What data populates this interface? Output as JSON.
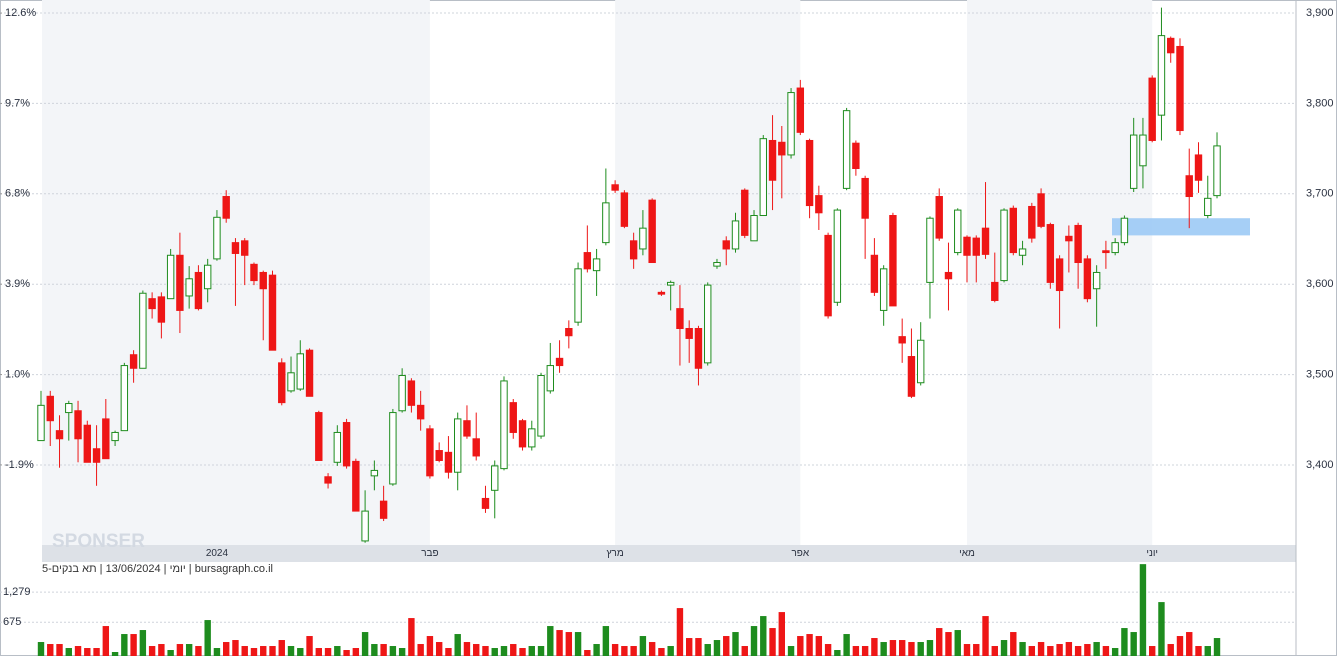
{
  "chart_data": {
    "type": "candlestick",
    "footer": "יומי | 13/06/2024 | תא בנקים-5 | bursagraph.co.il",
    "watermark": "SPONSER",
    "categories": [
      null,
      null,
      null,
      null,
      null,
      null,
      null,
      null,
      null,
      null,
      null,
      null,
      null,
      null,
      null,
      null,
      null,
      null,
      null,
      "2024",
      null,
      null,
      null,
      null,
      null,
      null,
      null,
      null,
      null,
      null,
      null,
      null,
      null,
      null,
      null,
      null,
      null,
      null,
      null,
      null,
      null,
      null,
      "פבר",
      null,
      null,
      null,
      null,
      null,
      null,
      null,
      null,
      null,
      null,
      null,
      null,
      null,
      null,
      null,
      null,
      null,
      null,
      null,
      "מרץ",
      null,
      null,
      null,
      null,
      null,
      null,
      null,
      null,
      null,
      null,
      null,
      null,
      null,
      null,
      null,
      null,
      null,
      null,
      null,
      "אפר",
      null,
      null,
      null,
      null,
      null,
      null,
      null,
      null,
      null,
      null,
      null,
      null,
      null,
      null,
      null,
      null,
      null,
      "מאי",
      null,
      null,
      null,
      null,
      null,
      null,
      null,
      null,
      null,
      null,
      null,
      null,
      null,
      null,
      null,
      null,
      null,
      null,
      null,
      "יוני",
      null,
      null,
      null,
      null,
      null,
      null,
      null
    ],
    "open": [
      3427,
      3476,
      3438,
      3458,
      3460,
      3444,
      3418,
      3451,
      3427,
      3438,
      3522,
      3507,
      3584,
      3586,
      3584,
      3632,
      3587,
      3613,
      3595,
      3628,
      3697,
      3646,
      3648,
      3622,
      3613,
      3610,
      3513,
      3482,
      3484,
      3527,
      3458,
      3387,
      3403,
      3447,
      3404,
      3316,
      3388,
      3360,
      3379,
      3460,
      3493,
      3466,
      3440,
      3416,
      3414,
      3392,
      3449,
      3429,
      3363,
      3372,
      3396,
      3469,
      3449,
      3420,
      3432,
      3482,
      3518,
      3551,
      3558,
      3635,
      3615,
      3646,
      3710,
      3701,
      3648,
      3639,
      3693,
      3591,
      3599,
      3573,
      3551,
      3551,
      3513,
      3620,
      3648,
      3639,
      3704,
      3648,
      3676,
      3759,
      3757,
      3743,
      3817,
      3759,
      3698,
      3654,
      3580,
      3706,
      3756,
      3717,
      3632,
      3571,
      3676,
      3542,
      3520,
      3491,
      3602,
      3697,
      3613,
      3635,
      3652,
      3651,
      3662,
      3602,
      3604,
      3684,
      3632,
      3686,
      3700,
      3666,
      3628,
      3653,
      3665,
      3628,
      3595,
      3637,
      3635,
      3646,
      3706,
      3731,
      3828,
      3787,
      3872,
      3863,
      3720,
      3743,
      3676,
      3698
    ],
    "high": [
      3482,
      3482,
      3455,
      3471,
      3471,
      3449,
      3444,
      3473,
      3438,
      3513,
      3527,
      3593,
      3591,
      3591,
      3639,
      3657,
      3620,
      3621,
      3628,
      3682,
      3704,
      3651,
      3651,
      3624,
      3615,
      3615,
      3518,
      3520,
      3538,
      3529,
      3460,
      3391,
      3444,
      3451,
      3407,
      3372,
      3405,
      3377,
      3462,
      3507,
      3496,
      3482,
      3444,
      3425,
      3432,
      3458,
      3466,
      3458,
      3377,
      3405,
      3498,
      3473,
      3451,
      3449,
      3502,
      3535,
      3538,
      3560,
      3624,
      3665,
      3639,
      3728,
      3715,
      3704,
      3657,
      3682,
      3695,
      3593,
      3604,
      3599,
      3560,
      3554,
      3602,
      3628,
      3653,
      3679,
      3706,
      3682,
      3765,
      3787,
      3775,
      3817,
      3826,
      3761,
      3709,
      3657,
      3684,
      3795,
      3759,
      3720,
      3651,
      3621,
      3679,
      3562,
      3551,
      3558,
      3675,
      3706,
      3646,
      3684,
      3654,
      3654,
      3713,
      3635,
      3684,
      3687,
      3648,
      3690,
      3706,
      3668,
      3632,
      3665,
      3668,
      3632,
      3621,
      3648,
      3651,
      3676,
      3784,
      3784,
      3831,
      3906,
      3874,
      3872,
      3750,
      3757,
      3720,
      3768
    ],
    "low": [
      3427,
      3421,
      3397,
      3427,
      3403,
      3403,
      3377,
      3407,
      3421,
      3438,
      3491,
      3507,
      3562,
      3540,
      3584,
      3546,
      3573,
      3571,
      3580,
      3626,
      3668,
      3576,
      3599,
      3599,
      3538,
      3527,
      3466,
      3480,
      3482,
      3476,
      3405,
      3374,
      3399,
      3396,
      3349,
      3314,
      3372,
      3338,
      3377,
      3458,
      3458,
      3438,
      3385,
      3403,
      3385,
      3372,
      3429,
      3405,
      3347,
      3341,
      3394,
      3429,
      3416,
      3416,
      3429,
      3479,
      3502,
      3529,
      3554,
      3613,
      3587,
      3643,
      3701,
      3662,
      3617,
      3632,
      3624,
      3587,
      3571,
      3510,
      3513,
      3488,
      3510,
      3617,
      3621,
      3635,
      3651,
      3648,
      3676,
      3682,
      3695,
      3739,
      3765,
      3673,
      3660,
      3562,
      3576,
      3704,
      3720,
      3628,
      3587,
      3554,
      3576,
      3513,
      3474,
      3488,
      3562,
      3648,
      3571,
      3632,
      3602,
      3602,
      3628,
      3580,
      3602,
      3632,
      3621,
      3646,
      3662,
      3595,
      3551,
      3613,
      3595,
      3580,
      3553,
      3617,
      3632,
      3643,
      3702,
      3706,
      3757,
      3759,
      3845,
      3765,
      3662,
      3701,
      3673,
      3695
    ],
    "close": [
      3466,
      3449,
      3429,
      3468,
      3429,
      3403,
      3403,
      3407,
      3436,
      3510,
      3507,
      3590,
      3573,
      3558,
      3632,
      3571,
      3606,
      3573,
      3621,
      3674,
      3673,
      3634,
      3632,
      3604,
      3595,
      3527,
      3469,
      3502,
      3523,
      3476,
      3405,
      3380,
      3436,
      3399,
      3349,
      3349,
      3394,
      3341,
      3458,
      3499,
      3466,
      3451,
      3388,
      3405,
      3392,
      3451,
      3432,
      3410,
      3352,
      3399,
      3493,
      3436,
      3420,
      3440,
      3499,
      3510,
      3510,
      3543,
      3617,
      3617,
      3628,
      3690,
      3704,
      3664,
      3628,
      3662,
      3624,
      3589,
      3602,
      3551,
      3540,
      3507,
      3599,
      3624,
      3639,
      3670,
      3654,
      3676,
      3761,
      3715,
      3743,
      3812,
      3768,
      3687,
      3679,
      3565,
      3682,
      3792,
      3728,
      3673,
      3591,
      3617,
      3576,
      3535,
      3476,
      3538,
      3673,
      3651,
      3606,
      3682,
      3632,
      3632,
      3633,
      3582,
      3682,
      3635,
      3639,
      3651,
      3664,
      3602,
      3593,
      3648,
      3624,
      3584,
      3613,
      3635,
      3646,
      3673,
      3765,
      3765,
      3759,
      3875,
      3856,
      3770,
      3697,
      3715,
      3695,
      3753
    ],
    "up_color": "#1e8c1e",
    "down_color": "#ee1616",
    "ylim": [
      3311.5,
      3914.4
    ],
    "yticks": [
      {
        "value": 3400,
        "label": "3,400"
      },
      {
        "value": 3500,
        "label": "3,500"
      },
      {
        "value": 3600,
        "label": "3,600"
      },
      {
        "value": 3700,
        "label": "3,700"
      },
      {
        "value": 3800,
        "label": "3,800"
      },
      {
        "value": 3900,
        "label": "3,900"
      }
    ],
    "y2lim": [
      -4.47,
      13.02
    ],
    "y2ticks": [
      {
        "value": -1.9,
        "label": "-1.9%"
      },
      {
        "value": 1.0,
        "label": "1.0%"
      },
      {
        "value": 3.9,
        "label": "3.9%"
      },
      {
        "value": 6.8,
        "label": "6.8%"
      },
      {
        "value": 9.7,
        "label": "9.7%"
      },
      {
        "value": 12.6,
        "label": "12.6%"
      }
    ],
    "grid": true,
    "highlight": {
      "ylim": [
        3654,
        3673
      ],
      "color": "#9ccaf5"
    },
    "volume": {
      "values": [
        280,
        240,
        240,
        160,
        200,
        160,
        160,
        600,
        80,
        440,
        440,
        520,
        200,
        240,
        120,
        240,
        240,
        200,
        720,
        160,
        280,
        320,
        200,
        160,
        200,
        200,
        320,
        200,
        160,
        400,
        160,
        160,
        200,
        120,
        160,
        480,
        240,
        240,
        200,
        160,
        760,
        240,
        400,
        280,
        160,
        440,
        280,
        240,
        200,
        160,
        200,
        240,
        160,
        200,
        200,
        600,
        520,
        480,
        480,
        120,
        240,
        600,
        240,
        200,
        200,
        400,
        280,
        160,
        200,
        960,
        360,
        360,
        240,
        320,
        400,
        480,
        200,
        600,
        800,
        560,
        880,
        200,
        400,
        440,
        400,
        240,
        120,
        440,
        200,
        200,
        360,
        280,
        320,
        320,
        280,
        280,
        320,
        560,
        480,
        520,
        240,
        240,
        800,
        200,
        320,
        480,
        280,
        200,
        280,
        200,
        240,
        280,
        200,
        240,
        280,
        200,
        160,
        560,
        480,
        1840,
        200,
        1080,
        240,
        400,
        480,
        200,
        200,
        360
      ],
      "ylim": [
        0,
        1883
      ],
      "yticks": [
        675,
        {
          "value": 1279,
          "label": "1,279"
        }
      ]
    }
  }
}
